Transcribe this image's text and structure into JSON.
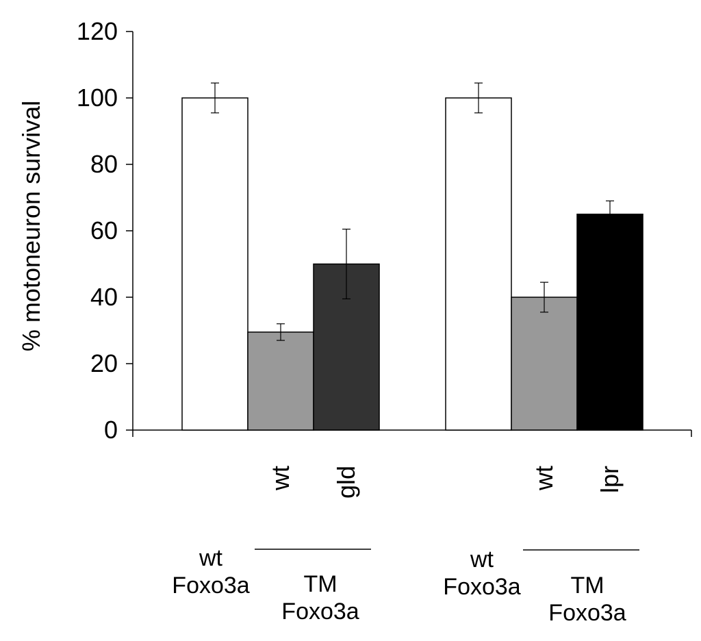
{
  "chart_data": {
    "type": "bar",
    "ylabel": "% motoneuron survival",
    "xlabel": "",
    "ylim": [
      0,
      120
    ],
    "yticks": [
      0,
      20,
      40,
      60,
      80,
      100,
      120
    ],
    "grid": false,
    "legend": "none",
    "bars": [
      {
        "group": 1,
        "value": 100,
        "error": 4.5,
        "label": "",
        "color": "#ffffff"
      },
      {
        "group": 1,
        "value": 29.5,
        "error": 2.5,
        "label": "wt",
        "color": "#999999"
      },
      {
        "group": 1,
        "value": 50,
        "error": 10.5,
        "label": "gld",
        "color": "#333333"
      },
      {
        "group": 2,
        "value": 100,
        "error": 4.5,
        "label": "",
        "color": "#ffffff"
      },
      {
        "group": 2,
        "value": 40,
        "error": 4.5,
        "label": "wt",
        "color": "#999999"
      },
      {
        "group": 2,
        "value": 65,
        "error": 4,
        "label": "lpr",
        "color": "#000000"
      }
    ],
    "bottom_labels": [
      {
        "lines": [
          "wt",
          "Foxo3a"
        ]
      },
      {
        "lines": [
          "TM",
          "Foxo3a"
        ],
        "underline": true
      },
      {
        "lines": [
          "wt",
          "Foxo3a"
        ]
      },
      {
        "lines": [
          "TM",
          "Foxo3a"
        ],
        "underline": true
      }
    ]
  }
}
